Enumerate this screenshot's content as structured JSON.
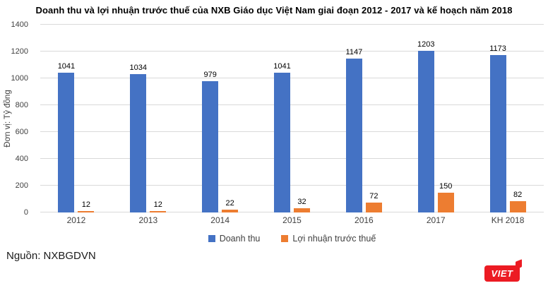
{
  "title": "Doanh thu và lợi nhuận trước thuế của NXB Giáo dục  Việt Nam giai đoạn 2012 - 2017 và kế hoạch năm 2018",
  "source": "Nguồn: NXBGDVN",
  "logo": {
    "text": "VIET",
    "color": "#ec1b23"
  },
  "colors": {
    "revenue": "#4472c4",
    "profit": "#ed7d31",
    "gridline": "#d9d9d9"
  },
  "chart_data": {
    "type": "bar",
    "title": "Doanh thu và lợi nhuận trước thuế của NXB Giáo dục  Việt Nam giai đoạn 2012 - 2017 và kế hoạch năm 2018",
    "categories": [
      "2012",
      "2013",
      "2014",
      "2015",
      "2016",
      "2017",
      "KH 2018"
    ],
    "series": [
      {
        "name": "Doanh thu",
        "color": "#4472c4",
        "values": [
          1041,
          1034,
          979,
          1041,
          1147,
          1203,
          1173
        ]
      },
      {
        "name": "Lợi nhuận trước thuế",
        "color": "#ed7d31",
        "values": [
          12,
          12,
          22,
          32,
          72,
          150,
          82
        ]
      }
    ],
    "xlabel": "",
    "ylabel": "Đơn vị: Tỷ đồng",
    "ylim": [
      0,
      1400
    ],
    "yticks": [
      0,
      200,
      400,
      600,
      800,
      1000,
      1200,
      1400
    ],
    "grid": true,
    "legend_position": "bottom",
    "data_labels": true
  }
}
